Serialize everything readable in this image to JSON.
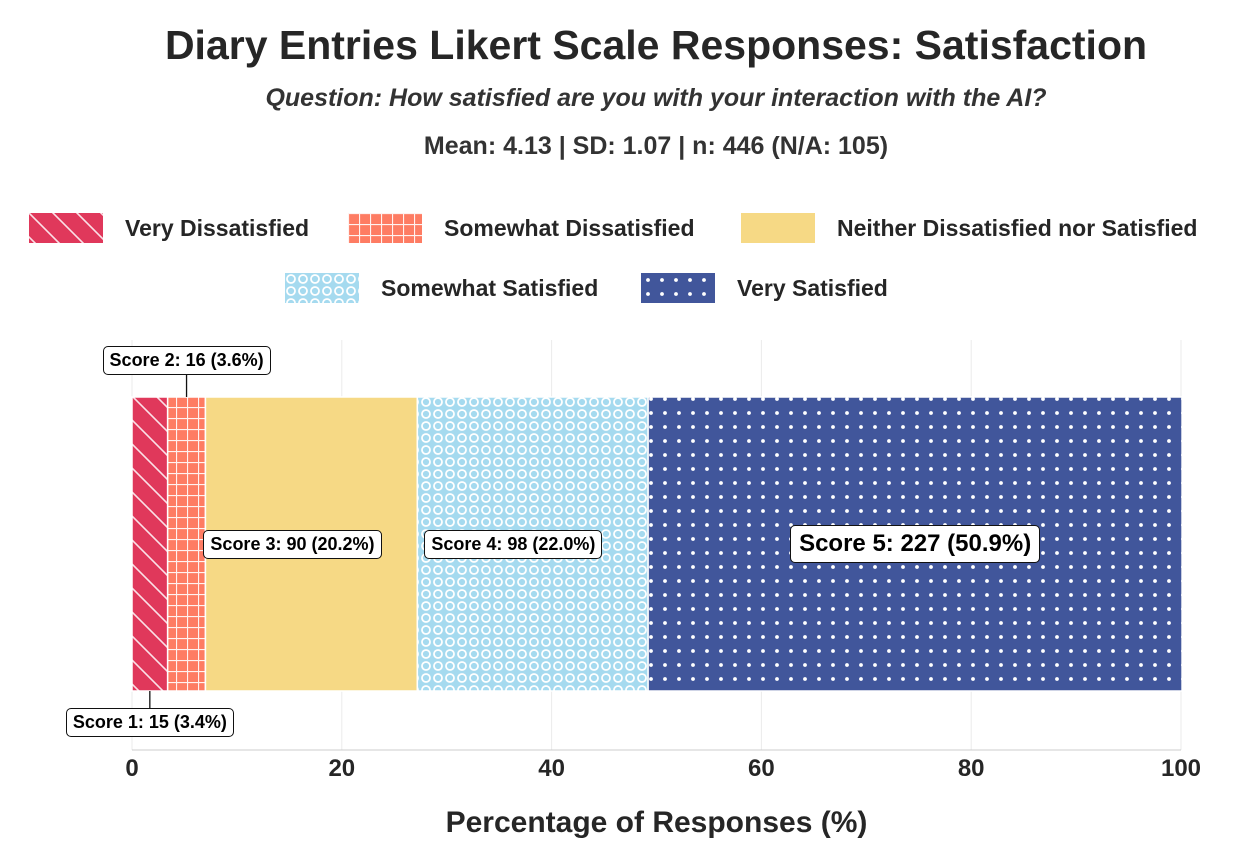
{
  "title": "Diary Entries Likert Scale Responses: Satisfaction",
  "subtitle": "Question: How satisfied are you with your interaction with the AI?",
  "stats": "Mean: 4.13 | SD: 1.07 | n: 446 (N/A: 105)",
  "legend": [
    {
      "label": "Very Dissatisfied",
      "pattern": "hatch",
      "color": "#e0385b"
    },
    {
      "label": "Somewhat Dissatisfied",
      "pattern": "grid",
      "color": "#fe7c63"
    },
    {
      "label": "Neither Dissatisfied nor Satisfied",
      "pattern": "solid",
      "color": "#f6d985"
    },
    {
      "label": "Somewhat Satisfied",
      "pattern": "rings",
      "color": "#a5daef"
    },
    {
      "label": "Very Satisfied",
      "pattern": "dots",
      "color": "#41569b"
    }
  ],
  "chart_data": {
    "type": "bar",
    "orientation": "horizontal",
    "stacked": true,
    "title": "Diary Entries Likert Scale Responses: Satisfaction",
    "xlabel": "Percentage of Responses (%)",
    "ylabel": "",
    "xlim": [
      0,
      100
    ],
    "xticks": [
      "0",
      "20",
      "40",
      "60",
      "80",
      "100"
    ],
    "grid": true,
    "series": [
      {
        "name": "Very Dissatisfied",
        "score": 1,
        "count": 15,
        "percent": 3.4,
        "label": "Score 1: 15 (3.4%)"
      },
      {
        "name": "Somewhat Dissatisfied",
        "score": 2,
        "count": 16,
        "percent": 3.6,
        "label": "Score 2: 16 (3.6%)"
      },
      {
        "name": "Neither Dissatisfied nor Satisfied",
        "score": 3,
        "count": 90,
        "percent": 20.2,
        "label": "Score 3: 90 (20.2%)"
      },
      {
        "name": "Somewhat Satisfied",
        "score": 4,
        "count": 98,
        "percent": 22.0,
        "label": "Score 4: 98 (22.0%)"
      },
      {
        "name": "Very Satisfied",
        "score": 5,
        "count": 227,
        "percent": 50.9,
        "label": "Score 5: 227 (50.9%)"
      }
    ]
  }
}
